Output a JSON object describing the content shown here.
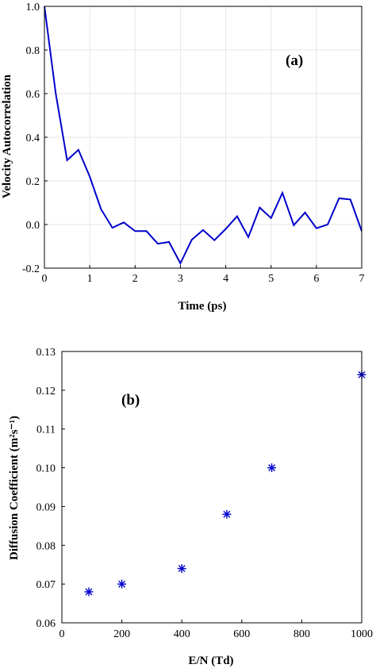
{
  "chart_data": [
    {
      "type": "line",
      "panel_label": "(a)",
      "xlabel": "Time (ps)",
      "ylabel": "Velocity Autocorrelation",
      "xlim": [
        0,
        7
      ],
      "ylim": [
        -0.2,
        1.0
      ],
      "grid": true,
      "xticks": [
        "0",
        "1",
        "2",
        "3",
        "4",
        "5",
        "6",
        "7"
      ],
      "yticks": [
        "-0.2",
        "0.0",
        "0.2",
        "0.4",
        "0.6",
        "0.8",
        "1.0"
      ],
      "color": "#0000cc",
      "series": [
        {
          "x": [
            0,
            0.25,
            0.5,
            0.75,
            1.0,
            1.25,
            1.5,
            1.75,
            2.0,
            2.25,
            2.5,
            2.75,
            3.0,
            3.25,
            3.5,
            3.75,
            4.0,
            4.25,
            4.5,
            4.75,
            5.0,
            5.25,
            5.5,
            5.75,
            6.0,
            6.25,
            6.5,
            6.75,
            7.0
          ],
          "y": [
            1.0,
            0.6,
            0.295,
            0.342,
            0.22,
            0.07,
            -0.015,
            0.01,
            -0.03,
            -0.03,
            -0.088,
            -0.08,
            -0.178,
            -0.07,
            -0.025,
            -0.072,
            -0.02,
            0.038,
            -0.058,
            0.078,
            0.03,
            0.145,
            -0.003,
            0.055,
            -0.017,
            0.0,
            0.12,
            0.115,
            -0.03
          ]
        }
      ]
    },
    {
      "type": "scatter",
      "panel_label": "(b)",
      "xlabel": "E/N (Td)",
      "ylabel": "Diffusion Coefficient  (m²s⁻¹)",
      "xlim": [
        0,
        1000
      ],
      "ylim": [
        0.06,
        0.13
      ],
      "grid": false,
      "xticks": [
        "0",
        "200",
        "400",
        "600",
        "800",
        "1000"
      ],
      "yticks": [
        "0.06",
        "0.07",
        "0.08",
        "0.09",
        "0.10",
        "0.11",
        "0.12",
        "0.13"
      ],
      "marker": "*",
      "color": "#0000cc",
      "series": [
        {
          "x": [
            90,
            200,
            400,
            550,
            700,
            1000
          ],
          "y": [
            0.068,
            0.07,
            0.074,
            0.088,
            0.1,
            0.124
          ]
        }
      ]
    }
  ]
}
